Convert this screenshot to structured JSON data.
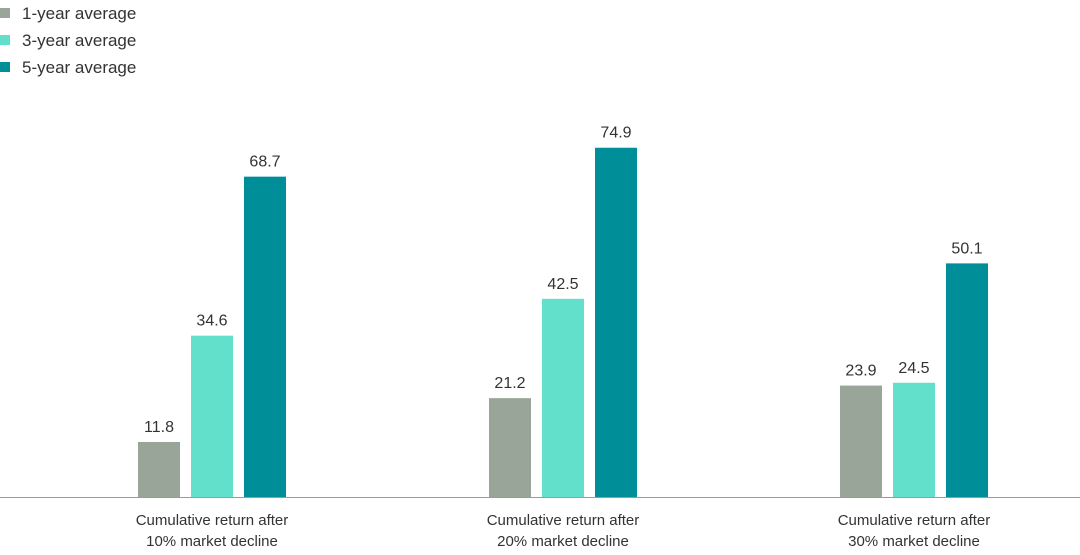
{
  "chart_data": {
    "type": "bar",
    "title": "",
    "xlabel": "",
    "ylabel": "",
    "ylim": [
      0,
      80
    ],
    "grid": false,
    "legend_position": "top-left",
    "categories": [
      [
        "Cumulative return after",
        "10% market decline"
      ],
      [
        "Cumulative return after",
        "20% market decline"
      ],
      [
        "Cumulative return after",
        "30% market decline"
      ]
    ],
    "series": [
      {
        "name": "1-year average",
        "color": "#98a598",
        "values": [
          11.8,
          21.2,
          23.9
        ]
      },
      {
        "name": "3-year average",
        "color": "#62e0cc",
        "values": [
          34.6,
          42.5,
          24.5
        ]
      },
      {
        "name": "5-year average",
        "color": "#008e99",
        "values": [
          68.7,
          74.9,
          50.1
        ]
      }
    ]
  }
}
